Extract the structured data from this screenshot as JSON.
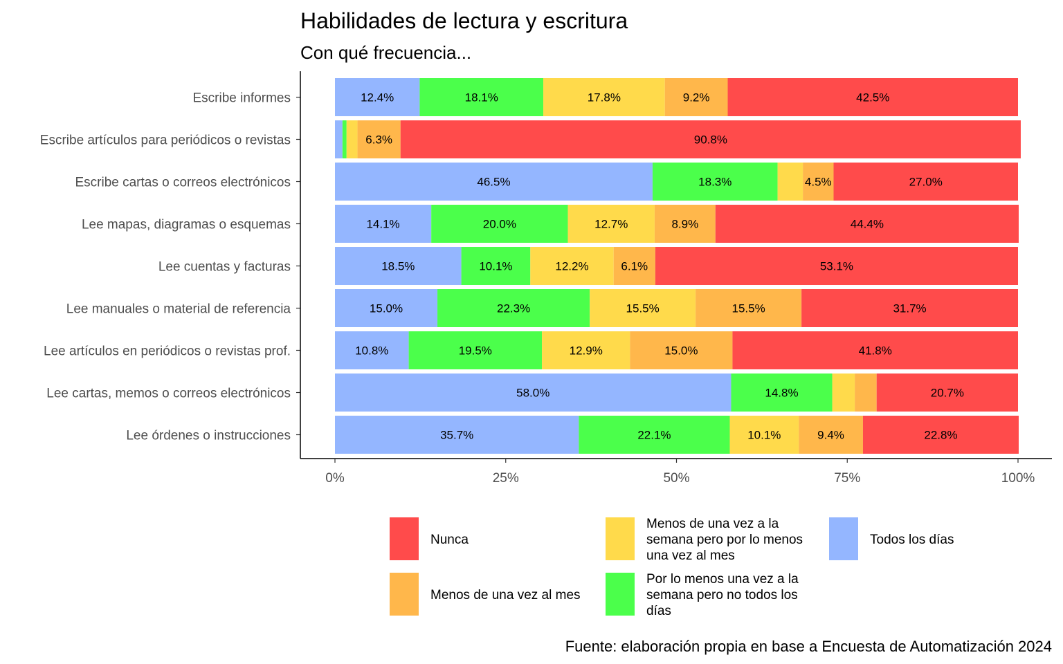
{
  "chart_data": {
    "type": "bar",
    "orientation": "horizontal",
    "stacked": "percent",
    "title": "Habilidades de lectura y escritura",
    "subtitle": "Con qué frecuencia...",
    "caption": "Fuente: elaboración propia en base a Encuesta de Automatización 2024",
    "xlim": [
      0,
      100
    ],
    "x_ticks": [
      "0%",
      "25%",
      "50%",
      "75%",
      "100%"
    ],
    "x_tick_values": [
      0,
      25,
      50,
      75,
      100
    ],
    "grid": false,
    "legend_position": "bottom",
    "categories": [
      "Escribe informes",
      "Escribe artículos para periódicos o revistas",
      "Escribe cartas o correos electrónicos",
      "Lee mapas, diagramas o esquemas",
      "Lee cuentas y facturas",
      "Lee manuales o material de referencia",
      "Lee artículos en periódicos o revistas prof.",
      "Lee cartas, memos o correos electrónicos",
      "Lee órdenes o instrucciones"
    ],
    "series": [
      {
        "name": "Todos los días",
        "color": "#94B6FF",
        "values": [
          12.4,
          1.1,
          46.5,
          14.1,
          18.5,
          15.0,
          10.8,
          58.0,
          35.7
        ]
      },
      {
        "name": "Por lo menos una vez a la semana pero no todos los días",
        "color": "#4BFF4B",
        "values": [
          18.1,
          0.6,
          18.3,
          20.0,
          10.1,
          22.3,
          19.5,
          14.8,
          22.1
        ]
      },
      {
        "name": "Menos de una vez a la semana pero por lo menos una vez al mes",
        "color": "#FFDA4B",
        "values": [
          17.8,
          1.6,
          3.7,
          12.7,
          12.2,
          15.5,
          12.9,
          3.3,
          10.1
        ]
      },
      {
        "name": "Menos de una vez al mes",
        "color": "#FFB74B",
        "values": [
          9.2,
          6.3,
          4.5,
          8.9,
          6.1,
          15.5,
          15.0,
          3.2,
          9.4
        ]
      },
      {
        "name": "Nunca",
        "color": "#FF4B4B",
        "values": [
          42.5,
          90.8,
          27.0,
          44.4,
          53.1,
          31.7,
          41.8,
          20.7,
          22.8
        ]
      }
    ],
    "bar_labels": [
      [
        "12.4%",
        "18.1%",
        "17.8%",
        "9.2%",
        "42.5%"
      ],
      [
        "",
        "",
        "",
        "6.3%",
        "90.8%"
      ],
      [
        "46.5%",
        "18.3%",
        "",
        "4.5%",
        "27.0%"
      ],
      [
        "14.1%",
        "20.0%",
        "12.7%",
        "8.9%",
        "44.4%"
      ],
      [
        "18.5%",
        "10.1%",
        "12.2%",
        "6.1%",
        "53.1%"
      ],
      [
        "15.0%",
        "22.3%",
        "15.5%",
        "15.5%",
        "31.7%"
      ],
      [
        "10.8%",
        "19.5%",
        "12.9%",
        "15.0%",
        "41.8%"
      ],
      [
        "58.0%",
        "14.8%",
        "",
        "",
        "20.7%"
      ],
      [
        "35.7%",
        "22.1%",
        "10.1%",
        "9.4%",
        "22.8%"
      ]
    ],
    "legend": [
      {
        "lines": [
          "Nunca"
        ],
        "color": "#FF4B4B"
      },
      {
        "lines": [
          "Menos de una vez al mes"
        ],
        "color": "#FFB74B"
      },
      {
        "lines": [
          "Menos de una vez a la",
          "semana pero por lo menos",
          "una vez al mes"
        ],
        "color": "#FFDA4B"
      },
      {
        "lines": [
          "Por lo menos una vez a la",
          "semana pero no todos los",
          "días"
        ],
        "color": "#4BFF4B"
      },
      {
        "lines": [
          "Todos los días"
        ],
        "color": "#94B6FF"
      }
    ]
  }
}
